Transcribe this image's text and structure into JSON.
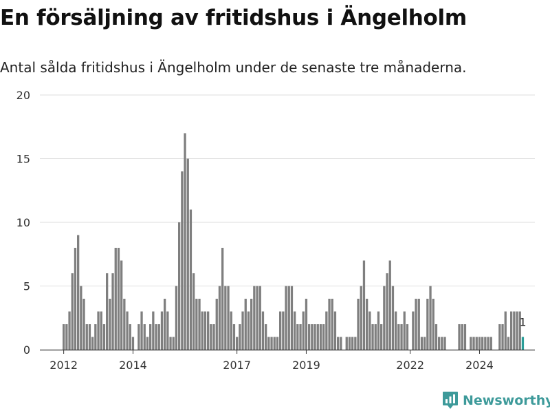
{
  "title": "En försäljning av fritidshus i Ängelholm",
  "subtitle": "Antal sålda fritidshus i Ängelholm under de senaste tre månaderna.",
  "brand": {
    "name": "Newsworthy",
    "icon": "newsworthy-chart-icon",
    "color": "#3d9a9a"
  },
  "colors": {
    "bar": "#7f7f7f",
    "highlight": "#2a9d98",
    "grid": "#dddddd"
  },
  "chart_data": {
    "type": "bar",
    "grid": true,
    "ylim": [
      0,
      20
    ],
    "yticks": [
      0,
      5,
      10,
      15,
      20
    ],
    "xticks": [
      "2012",
      "2014",
      "2017",
      "2019",
      "2022",
      "2024"
    ],
    "start": "2012-01",
    "values": [
      2,
      2,
      3,
      6,
      8,
      9,
      5,
      4,
      2,
      2,
      1,
      2,
      3,
      3,
      2,
      6,
      4,
      6,
      8,
      8,
      7,
      4,
      3,
      2,
      1,
      0,
      2,
      3,
      2,
      1,
      2,
      3,
      2,
      2,
      3,
      4,
      3,
      1,
      1,
      5,
      10,
      14,
      17,
      15,
      11,
      6,
      4,
      4,
      3,
      3,
      3,
      2,
      2,
      4,
      5,
      8,
      5,
      5,
      3,
      2,
      1,
      2,
      3,
      4,
      3,
      4,
      5,
      5,
      5,
      3,
      2,
      1,
      1,
      1,
      1,
      3,
      3,
      5,
      5,
      5,
      3,
      2,
      2,
      3,
      4,
      2,
      2,
      2,
      2,
      2,
      2,
      3,
      4,
      4,
      3,
      1,
      1,
      0,
      1,
      1,
      1,
      1,
      4,
      5,
      7,
      4,
      3,
      2,
      2,
      3,
      2,
      5,
      6,
      7,
      5,
      3,
      2,
      2,
      3,
      2,
      0,
      3,
      4,
      4,
      1,
      1,
      4,
      5,
      4,
      2,
      1,
      1,
      1,
      0,
      0,
      0,
      0,
      2,
      2,
      2,
      0,
      1,
      1,
      1,
      1,
      1,
      1,
      1,
      1,
      0,
      0,
      2,
      2,
      3,
      1,
      3,
      3,
      3,
      3,
      1
    ],
    "highlight": {
      "value": 1,
      "label": "1"
    }
  }
}
